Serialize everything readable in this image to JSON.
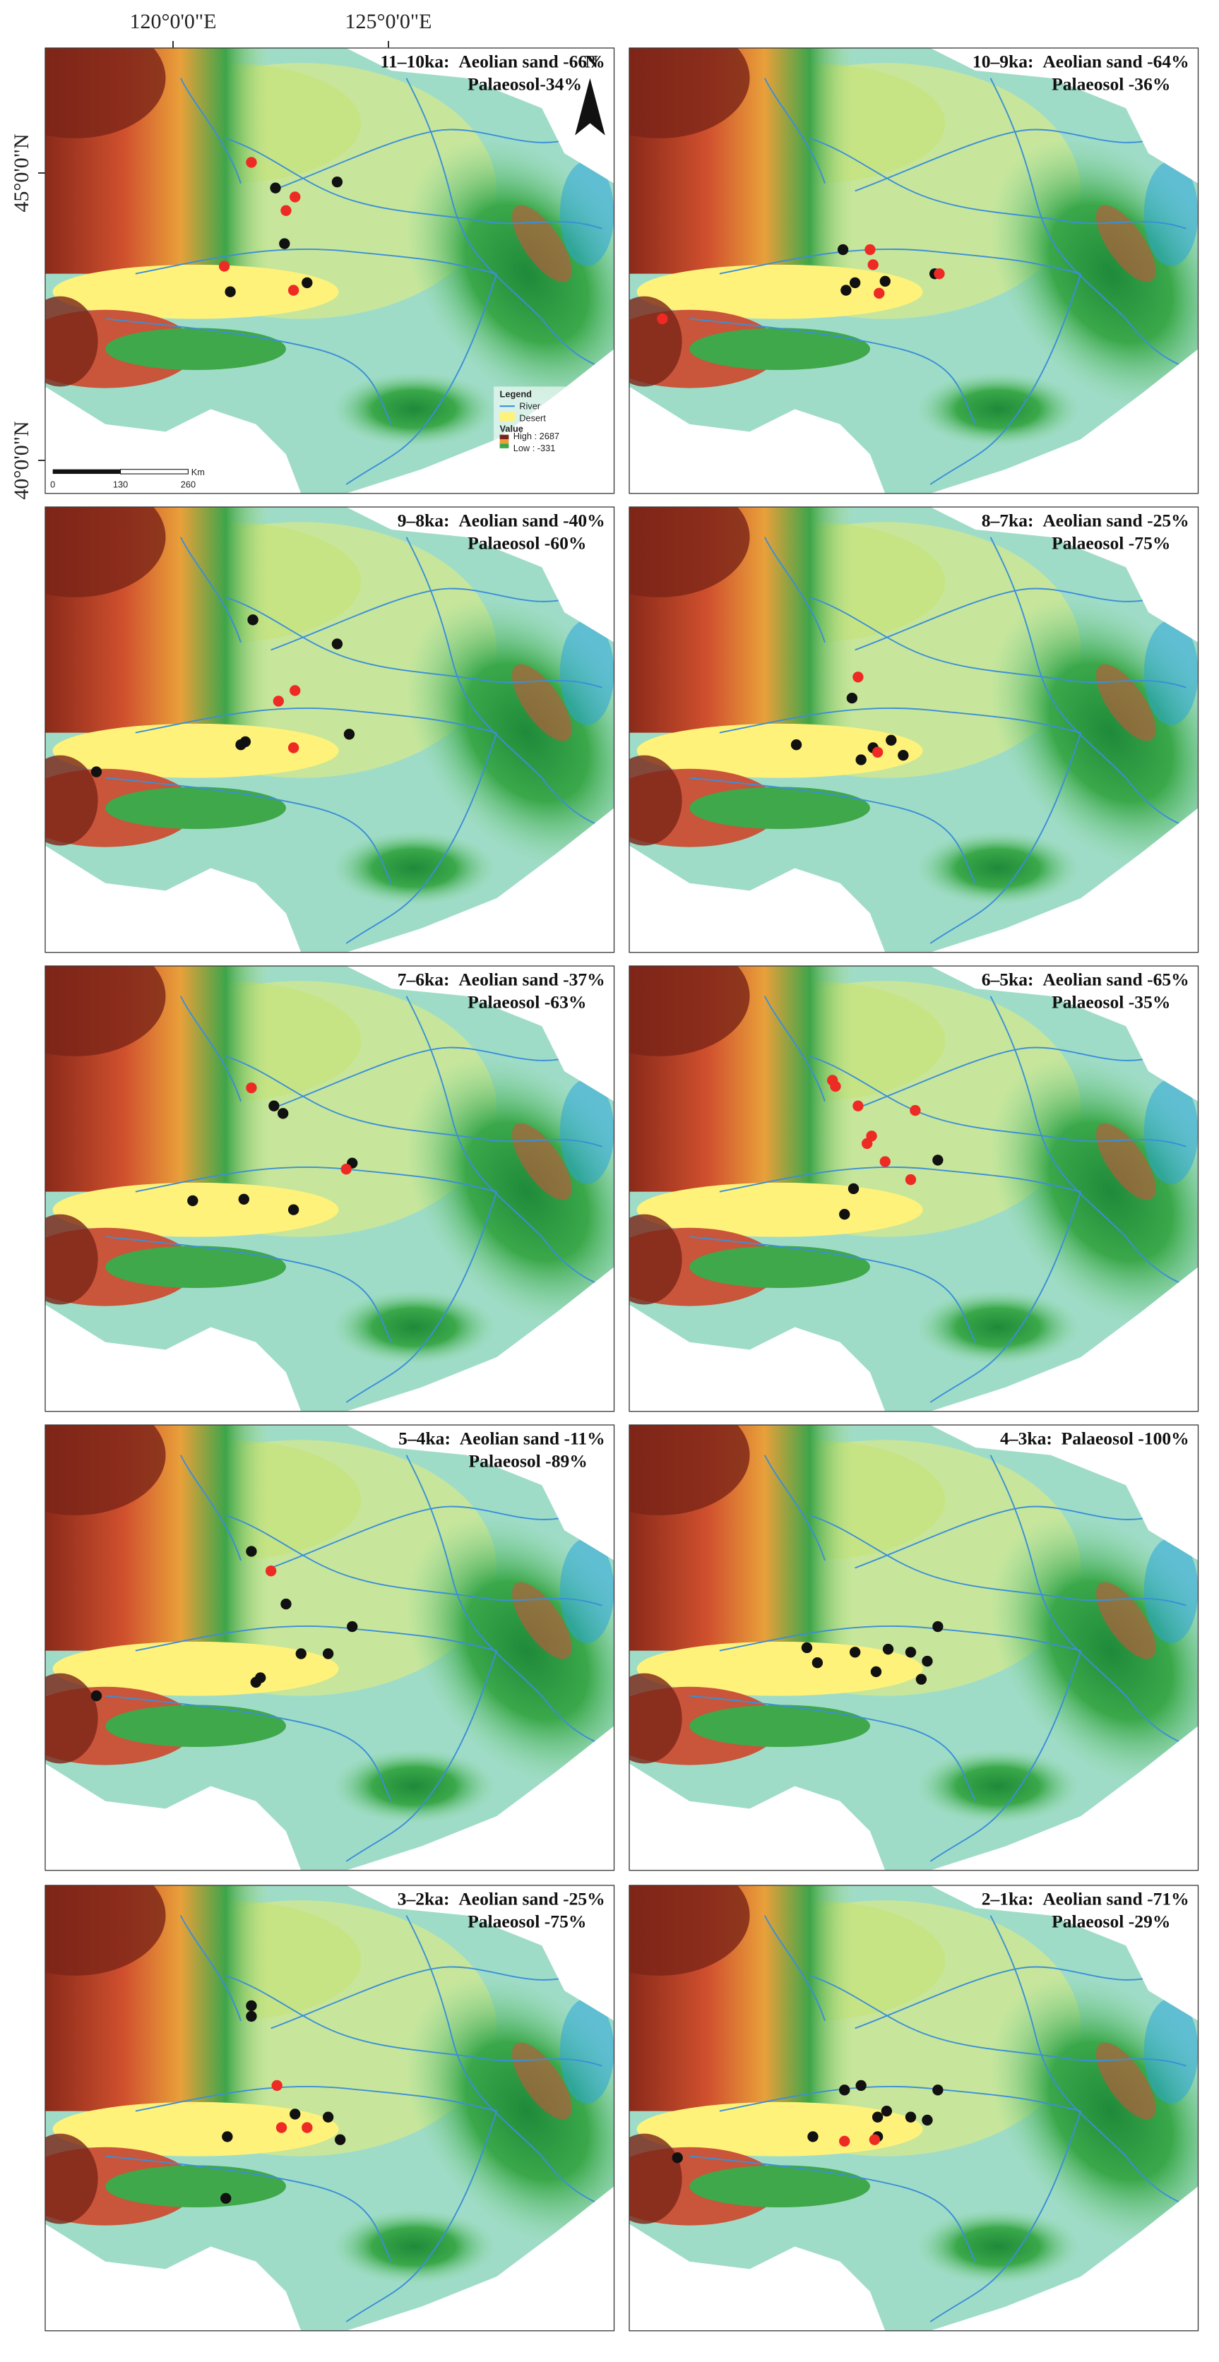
{
  "axes": {
    "lon": [
      "120°0'0\"E",
      "125°0'0\"E"
    ],
    "lat": [
      "45°0'0\"N",
      "40°0'0\"N"
    ]
  },
  "north": "N",
  "legend": {
    "title": "Legend",
    "river": "River",
    "desert": "Desert",
    "value": "Value",
    "high": "High : 2687",
    "low": "Low : -331"
  },
  "scale": {
    "labels": [
      "0",
      "130",
      "260"
    ],
    "unit": "Km"
  },
  "panels": [
    {
      "period": "11–10ka:",
      "line1": "Aeolian sand -66%",
      "line2": "Palaeosol-34%"
    },
    {
      "period": "10–9ka:",
      "line1": "Aeolian sand -64%",
      "line2": "Palaeosol -36%"
    },
    {
      "period": "9–8ka:",
      "line1": "Aeolian sand -40%",
      "line2": "Palaeosol -60%"
    },
    {
      "period": "8–7ka:",
      "line1": "Aeolian sand -25%",
      "line2": "Palaeosol -75%"
    },
    {
      "period": "7–6ka:",
      "line1": "Aeolian sand -37%",
      "line2": "Palaeosol -63%"
    },
    {
      "period": "6–5ka:",
      "line1": "Aeolian sand -65%",
      "line2": "Palaeosol -35%"
    },
    {
      "period": "5–4ka:",
      "line1": "Aeolian sand -11%",
      "line2": "Palaeosol -89%"
    },
    {
      "period": "4–3ka:",
      "line1": "Palaeosol -100%"
    },
    {
      "period": "3–2ka:",
      "line1": "Aeolian sand -25%",
      "line2": "Palaeosol -75%"
    },
    {
      "period": "2–1ka:",
      "line1": "Aeolian sand -71%",
      "line2": "Palaeosol -29%"
    }
  ]
}
